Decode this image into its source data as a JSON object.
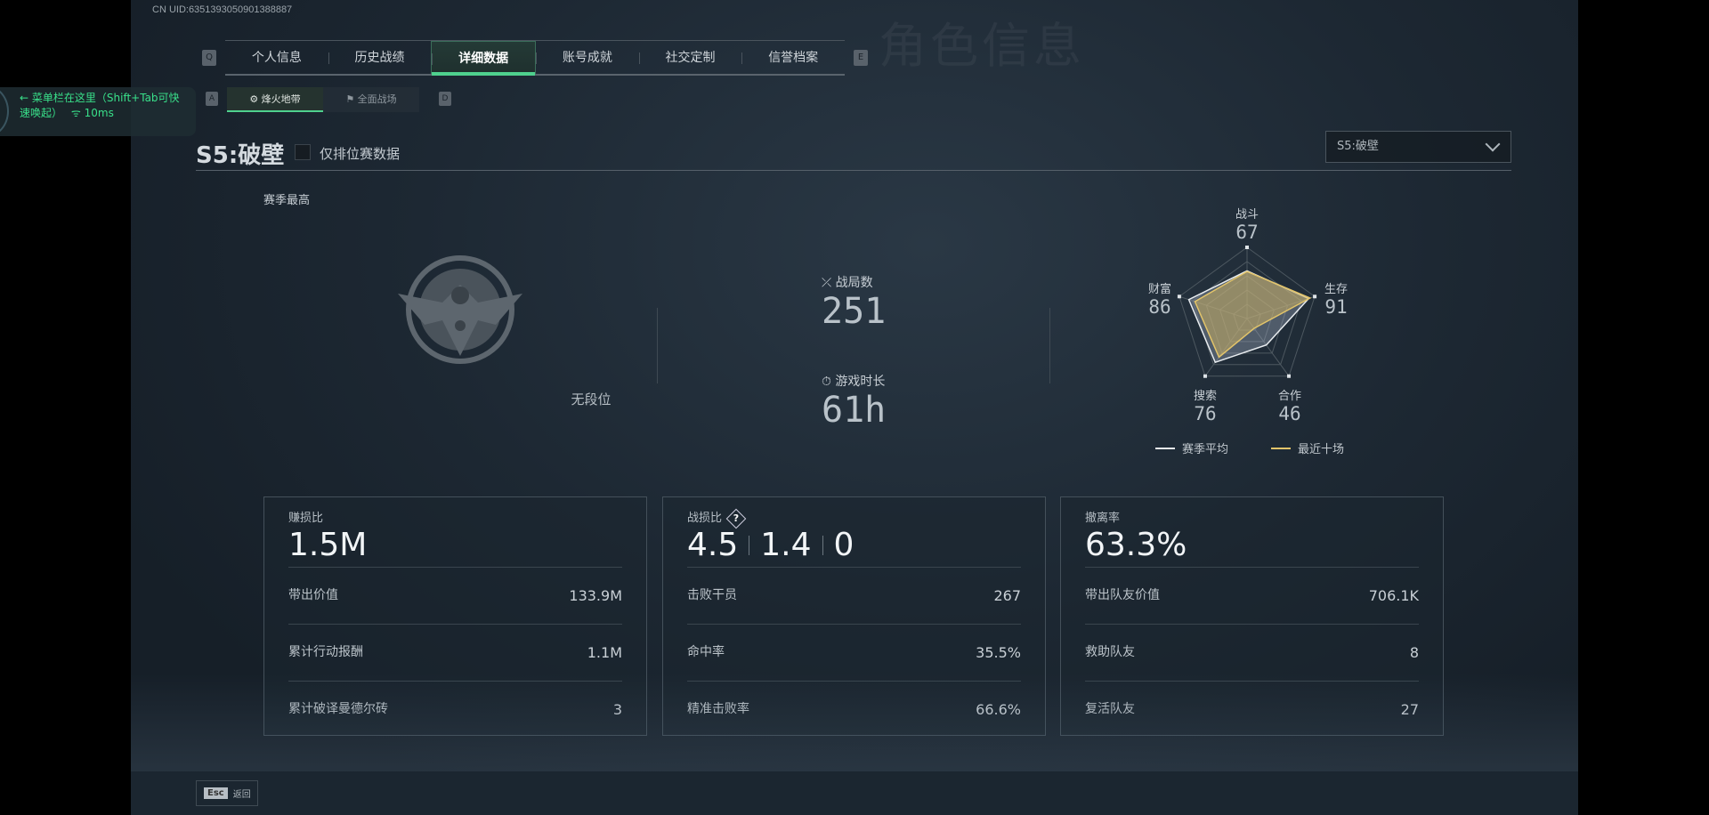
{
  "uid": "CN UID:6351393050901388887",
  "ghost_title": "角色信息",
  "tabs": {
    "prev_key": "Q",
    "next_key": "E",
    "items": [
      {
        "label": "个人信息"
      },
      {
        "label": "历史战绩"
      },
      {
        "label": "详细数据",
        "active": true
      },
      {
        "label": "账号成就"
      },
      {
        "label": "社交定制"
      },
      {
        "label": "信誉档案"
      }
    ]
  },
  "subtabs": {
    "prev_key": "A",
    "next_key": "D",
    "items": [
      {
        "label": "烽火地带",
        "active": true
      },
      {
        "label": "全面战场"
      }
    ]
  },
  "overlay": {
    "text": "菜单栏在这里（Shift+Tab可快速唤起）",
    "ping": "10ms"
  },
  "season": {
    "title": "S5:破壁",
    "ranked_only_label": "仅排位赛数据",
    "ranked_only_checked": false,
    "dropdown_value": "S5:破壁"
  },
  "rank": {
    "label": "赛季最高",
    "value": "无段位"
  },
  "stats": {
    "matches_label": "战局数",
    "matches": "251",
    "playtime_label": "游戏时长",
    "playtime": "61h"
  },
  "radar": {
    "axes": [
      {
        "name": "战斗",
        "value": 67
      },
      {
        "name": "生存",
        "value": 91
      },
      {
        "name": "合作",
        "value": 46
      },
      {
        "name": "搜索",
        "value": 76
      },
      {
        "name": "财富",
        "value": 86
      }
    ],
    "recent_values": [
      66,
      93,
      17,
      67,
      77
    ],
    "legend": {
      "season": "赛季平均",
      "recent": "最近十场"
    },
    "colors": {
      "season": "#e8ecef",
      "recent": "#e2c46a"
    }
  },
  "cards": [
    {
      "title": "赚损比",
      "values": [
        "1.5M"
      ],
      "rows": [
        {
          "label": "带出价值",
          "value": "133.9M"
        },
        {
          "label": "累计行动报酬",
          "value": "1.1M"
        },
        {
          "label": "累计破译曼德尔砖",
          "value": "3"
        }
      ]
    },
    {
      "title": "战损比",
      "help": "?",
      "values": [
        "4.5",
        "1.4",
        "0"
      ],
      "rows": [
        {
          "label": "击败干员",
          "value": "267"
        },
        {
          "label": "命中率",
          "value": "35.5%"
        },
        {
          "label": "精准击败率",
          "value": "66.6%"
        }
      ]
    },
    {
      "title": "撤离率",
      "values": [
        "63.3%"
      ],
      "rows": [
        {
          "label": "带出队友价值",
          "value": "706.1K"
        },
        {
          "label": "救助队友",
          "value": "8"
        },
        {
          "label": "复活队友",
          "value": "27"
        }
      ]
    }
  ],
  "footer": {
    "esc_key": "Esc",
    "back_label": "返回"
  },
  "accent": "#4fd18e"
}
